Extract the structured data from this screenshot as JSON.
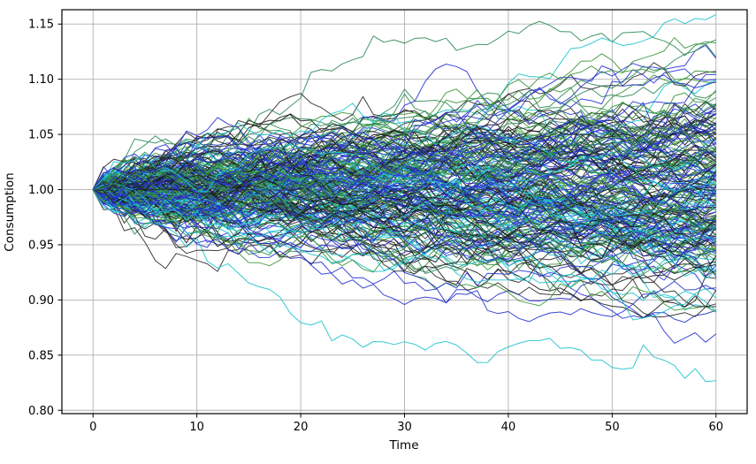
{
  "figure": {
    "background": "#ffffff"
  },
  "chart_data": {
    "type": "line",
    "title": "",
    "xlabel": "Time",
    "ylabel": "Consumption",
    "xlim": [
      -3,
      63
    ],
    "ylim": [
      0.797,
      1.163
    ],
    "x_ticks": [
      0,
      10,
      20,
      30,
      40,
      50,
      60
    ],
    "x_tick_labels": [
      "0",
      "10",
      "20",
      "30",
      "40",
      "50",
      "60"
    ],
    "y_ticks": [
      0.8,
      0.85,
      0.9,
      0.95,
      1.0,
      1.05,
      1.1,
      1.15
    ],
    "y_tick_labels": [
      "0.80",
      "0.85",
      "0.90",
      "0.95",
      "1.00",
      "1.05",
      "1.10",
      "1.15"
    ],
    "grid": true,
    "grid_color": "#b0b0b0",
    "spine_color": "#000000",
    "tick_color": "#000000",
    "legend_position": "none",
    "series_description": "Monte Carlo ensemble of simulated consumption random-walk paths, all starting at value 1.0 at time 0 and fanning out over 60 periods; endpoint spread roughly 0.81 to 1.15",
    "simulation": {
      "n_paths": 220,
      "n_steps": 60,
      "start_value": 1.0,
      "step_std": 0.007,
      "seed": 20240613
    },
    "line_colors": [
      "#2b2b2b",
      "#2a35d6",
      "#2e8b57",
      "#1cc4ce",
      "#3c9639",
      "#1a1a1a",
      "#2233cc"
    ],
    "line_width": 1.0,
    "line_opacity": 0.9,
    "observed_value_range_at_end": [
      0.81,
      1.15
    ]
  }
}
